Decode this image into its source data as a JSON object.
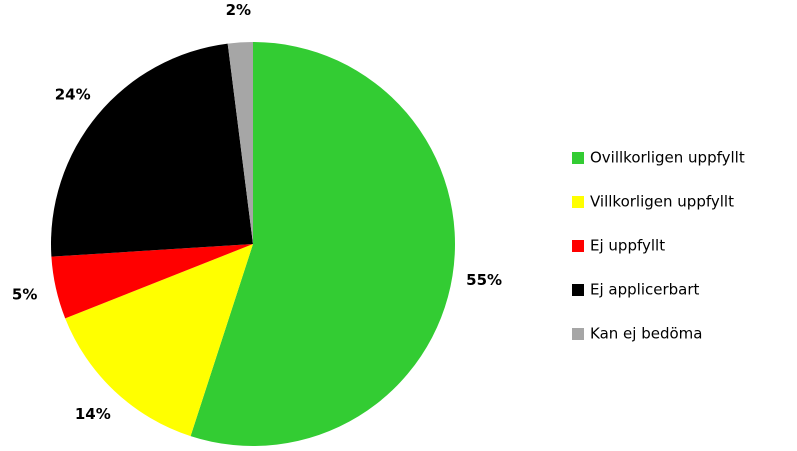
{
  "chart_data": {
    "type": "pie",
    "categories": [
      "Ovillkorligen uppfyllt",
      "Villkorligen uppfyllt",
      "Ej uppfyllt",
      "Ej applicerbart",
      "Kan ej bedöma"
    ],
    "values": [
      55,
      14,
      5,
      24,
      2
    ],
    "value_labels": [
      "55%",
      "14%",
      "5%",
      "24%",
      "2%"
    ],
    "colors": [
      "#33cc33",
      "#ffff00",
      "#ff0000",
      "#000000",
      "#a6a6a6"
    ],
    "legend": "right"
  }
}
